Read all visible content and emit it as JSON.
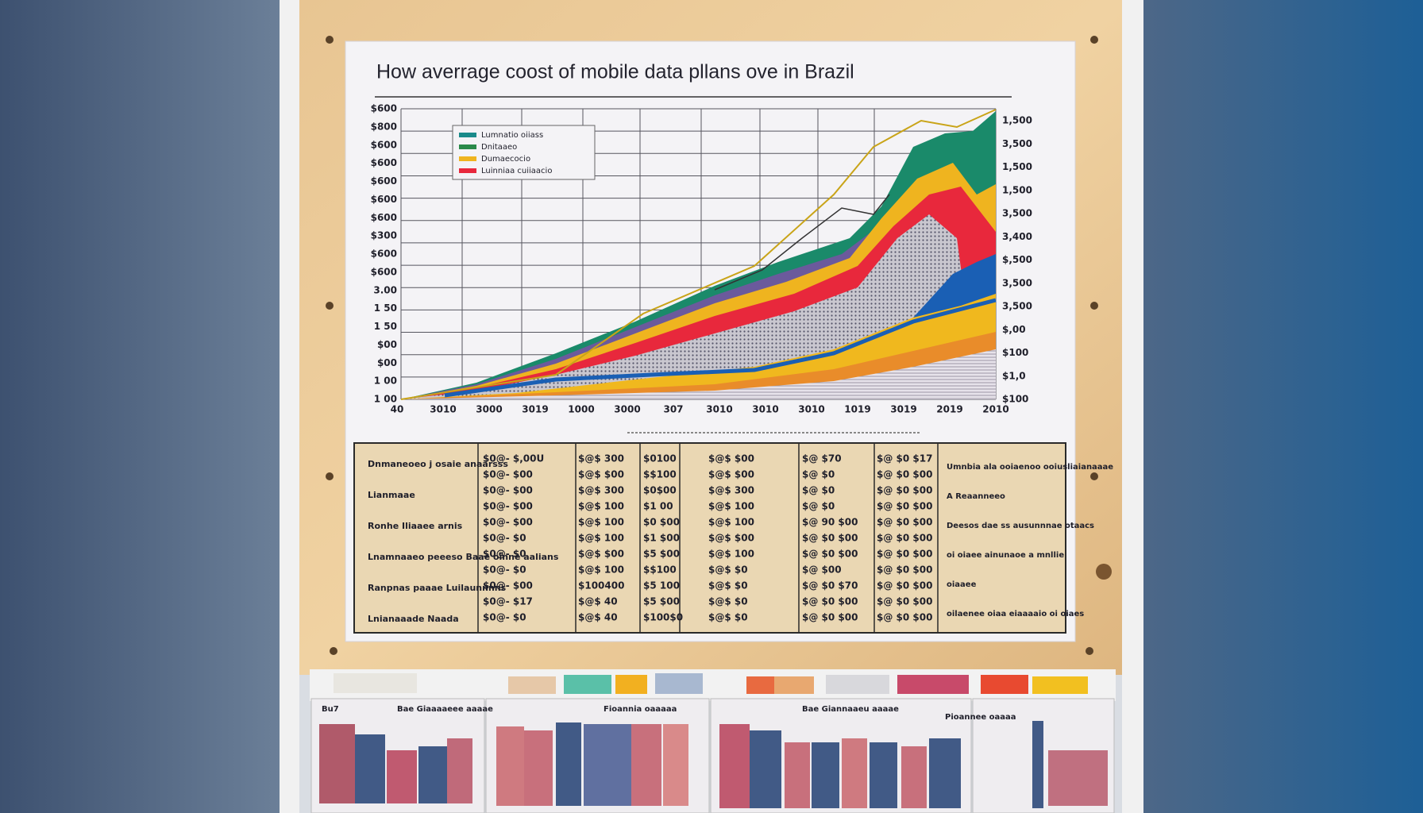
{
  "poster": {
    "title": "How averrage coost of mobile data pllans ove in Brazil",
    "y_labels_left": [
      "$600",
      "$800",
      "$600",
      "$600",
      "$600",
      "$600",
      "$600",
      "$300",
      "$600",
      "$600",
      "3.00",
      "1 50",
      "1 50",
      "$00",
      "$00",
      "1 00",
      "1 00"
    ],
    "y_labels_right": [
      "1,500",
      "3,500",
      "1,500",
      "1,500",
      "3,500",
      "3,400",
      "$,500",
      "3,500",
      "3,500",
      "$,00",
      "$100",
      "$1,0",
      "$100"
    ],
    "x_labels": [
      "40",
      "3010",
      "3000",
      "3019",
      "1000",
      "3000",
      "307",
      "3010",
      "3010",
      "3010",
      "1019",
      "3019",
      "2019",
      "2010"
    ],
    "legend": [
      "Lumnatio oiiass",
      "Dnitaaeo",
      "Dumaecocio",
      "Luinniaa cuiiaacio"
    ],
    "table": {
      "row_labels": [
        "Dnmaneoeo j osaie anaarsss",
        "Lianmaae",
        "Ronhe Iliaaee arnis",
        "Lnamnaaeo peeeso Baae oinne aalians",
        "Ranpnas paaae Luilaunnnns",
        "Lnianaaade Naada"
      ],
      "columns": [
        [
          "$0@- $,00U",
          "$0@- $00",
          "$0@- $00",
          "$0@- $00",
          "$0@- $00",
          "$0@- $0",
          "$0@- $0",
          "$0@- $0",
          "$0@- $00",
          "$0@- $17",
          "$0@- $0"
        ],
        [
          "$@$ 300",
          "$@$ $00",
          "$@$ 300",
          "$@$ 100",
          "$@$ 100",
          "$@$ 100",
          "$@$ $00",
          "$@$ 100",
          "$100400",
          "$@$ 40",
          "$@$ 40"
        ],
        [
          "$0100",
          "$$100",
          "$0$00",
          "$1 00",
          "$0 $00",
          "$1 $00",
          "$5 $00",
          "$$100",
          "$5 100",
          "$5 $00",
          "$100$0"
        ],
        [
          "$@$ $00",
          "$@$ $00",
          "$@$ 300",
          "$@$ 100",
          "$@$ 100",
          "$@$ $00",
          "$@$ 100",
          "$@$ $0",
          "$@$ $0",
          "$@$ $0",
          "$@$ $0"
        ],
        [
          "$@ $70",
          "$@ $0",
          "$@ $0",
          "$@ $0",
          "$@ 90 $00",
          "$@ $0 $00",
          "$@ $0 $00",
          "$@ $00",
          "$@ $0 $70",
          "$@ $0 $00",
          "$@ $0 $00"
        ],
        [
          "$@ $0 $17",
          "$@ $0 $00",
          "$@ $0 $00",
          "$@ $0 $00",
          "$@ $0 $00",
          "$@ $0 $00",
          "$@ $0 $00",
          "$@ $0 $00",
          "$@ $0 $00",
          "$@ $0 $00",
          "$@ $0 $00"
        ]
      ],
      "notes": [
        "Umnbia ala ooiaenoo ooiusliaianaaae",
        "A Reaanneeo",
        "Deesos dae ss ausunnnae otaacs",
        "oi oiaee ainunaoe a mnllie",
        "oiaaee",
        "oilaenee oiaa eiaaaaio oi oiaes"
      ]
    },
    "display_cards": [
      "Bu7",
      "Bae Giaaaaeee aaaae",
      "Fioannia oaaaaa",
      "Bae Giannaaeu aaaae",
      "Pioannee oaaaa"
    ]
  }
}
